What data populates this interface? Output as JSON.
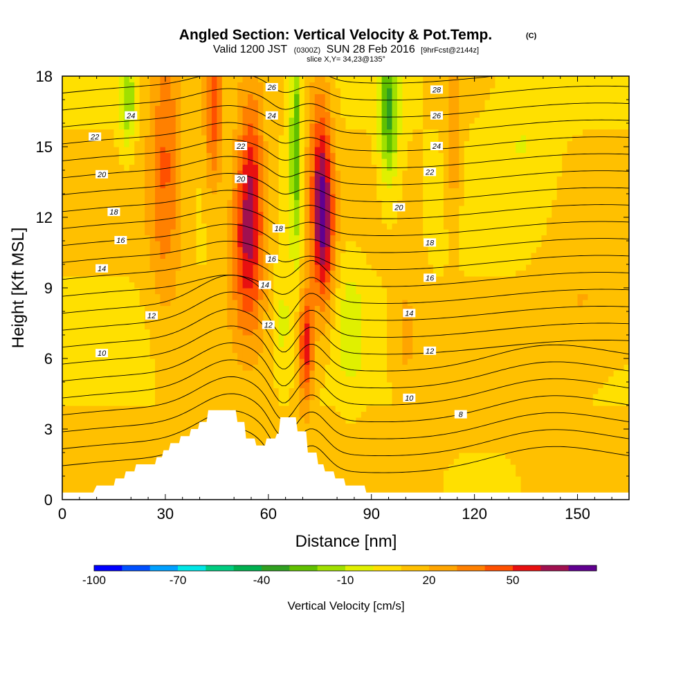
{
  "chart_data": {
    "type": "heatmap",
    "title": "Angled Section: Vertical Velocity & Pot.Temp.",
    "title_units": "(C)",
    "subtitle_parts": {
      "valid": "Valid 1200 JST",
      "z": "(0300Z)",
      "date": "SUN 28 Feb 2016",
      "fcst": "[9hrFcst@2144z]"
    },
    "slice": "slice X,Y= 34,23@135°",
    "xlabel": "Distance [nm]",
    "ylabel": "Height [Kft MSL]",
    "xlim": [
      0,
      165
    ],
    "ylim": [
      0,
      18
    ],
    "x_ticks": [
      "0",
      "30",
      "60",
      "90",
      "120",
      "150"
    ],
    "y_ticks": [
      "0",
      "3",
      "6",
      "9",
      "12",
      "15",
      "18"
    ],
    "colorbar": {
      "title": "Vertical Velocity [cm/s]",
      "levels": [
        -100,
        -90,
        -80,
        -70,
        -60,
        -50,
        -40,
        -30,
        -20,
        -10,
        0,
        10,
        20,
        30,
        40,
        50,
        60,
        70
      ],
      "colors": [
        "#0000ff",
        "#0050ff",
        "#00a0ff",
        "#00e6e6",
        "#00cc80",
        "#00b050",
        "#30a020",
        "#60c000",
        "#a0e000",
        "#e0f000",
        "#ffe000",
        "#ffc000",
        "#ffa500",
        "#ff8000",
        "#ff5000",
        "#e81010",
        "#a01050",
        "#600090"
      ],
      "tick_labels": [
        "-100",
        "-70",
        "-40",
        "-10",
        "20",
        "50"
      ]
    },
    "terrain": [
      [
        0,
        0.3
      ],
      [
        9,
        0.3
      ],
      [
        10,
        0.6
      ],
      [
        15,
        0.6
      ],
      [
        15.5,
        0.9
      ],
      [
        18,
        0.9
      ],
      [
        18.5,
        1.2
      ],
      [
        21,
        1.2
      ],
      [
        21.5,
        1.5
      ],
      [
        27,
        1.5
      ],
      [
        27.5,
        1.8
      ],
      [
        29,
        1.8
      ],
      [
        29.5,
        2.1
      ],
      [
        31,
        2.1
      ],
      [
        31.5,
        2.4
      ],
      [
        34,
        2.4
      ],
      [
        34.5,
        2.7
      ],
      [
        37,
        2.7
      ],
      [
        37.5,
        3.0
      ],
      [
        39.5,
        3.0
      ],
      [
        40,
        3.3
      ],
      [
        42,
        3.3
      ],
      [
        42.5,
        3.8
      ],
      [
        50.5,
        3.8
      ],
      [
        51,
        3.3
      ],
      [
        53,
        3.3
      ],
      [
        53.5,
        2.6
      ],
      [
        56,
        2.6
      ],
      [
        56.5,
        2.3
      ],
      [
        59,
        2.3
      ],
      [
        59.5,
        2.6
      ],
      [
        62,
        2.6
      ],
      [
        62.5,
        2.8
      ],
      [
        63,
        2.8
      ],
      [
        63.5,
        3.5
      ],
      [
        68,
        3.5
      ],
      [
        68.5,
        2.9
      ],
      [
        71,
        2.9
      ],
      [
        71.5,
        2.0
      ],
      [
        74,
        2.0
      ],
      [
        74.5,
        1.5
      ],
      [
        76,
        1.5
      ],
      [
        76.5,
        1.2
      ],
      [
        79,
        1.2
      ],
      [
        79.5,
        0.9
      ],
      [
        82,
        0.9
      ],
      [
        82.5,
        0.6
      ],
      [
        88,
        0.6
      ],
      [
        88.5,
        0.3
      ],
      [
        165,
        0.3
      ]
    ],
    "updrafts": [
      {
        "x": 30,
        "y": 14.5,
        "sx": 3.5,
        "sy": 4.5,
        "w": 30
      },
      {
        "x": 44,
        "y": 16.5,
        "sx": 1.8,
        "sy": 2.5,
        "w": 35
      },
      {
        "x": 54,
        "y": 11,
        "sx": 3.5,
        "sy": 2.8,
        "w": 48
      },
      {
        "x": 55,
        "y": 14.5,
        "sx": 2.5,
        "sy": 2.5,
        "w": 25
      },
      {
        "x": 71,
        "y": 6.5,
        "sx": 1.5,
        "sy": 1.8,
        "w": 45
      },
      {
        "x": 76,
        "y": 11.5,
        "sx": 2.2,
        "sy": 2.5,
        "w": 50
      },
      {
        "x": 75,
        "y": 14.5,
        "sx": 2.5,
        "sy": 3,
        "w": 28
      },
      {
        "x": 114,
        "y": 15.5,
        "sx": 1.5,
        "sy": 2.5,
        "w": 22
      },
      {
        "x": 152,
        "y": 8,
        "sx": 10,
        "sy": 2,
        "w": 12
      },
      {
        "x": 100,
        "y": 7,
        "sx": 3,
        "sy": 2,
        "w": 14
      }
    ],
    "downdrafts": [
      {
        "x": 68,
        "y": 15,
        "sx": 1.2,
        "sy": 3.5,
        "w": 38
      },
      {
        "x": 95,
        "y": 16.5,
        "sx": 2,
        "sy": 2.2,
        "w": 42
      },
      {
        "x": 19,
        "y": 17,
        "sx": 1.5,
        "sy": 1.5,
        "w": 28
      },
      {
        "x": 64,
        "y": 7.5,
        "sx": 2,
        "sy": 1.5,
        "w": 15
      },
      {
        "x": 84,
        "y": 7.5,
        "sx": 3,
        "sy": 2,
        "w": 14
      },
      {
        "x": 134,
        "y": 16,
        "sx": 6,
        "sy": 3,
        "w": 10
      }
    ],
    "theta_levels": [
      4,
      6,
      8,
      10,
      12,
      14,
      16,
      18,
      20,
      22,
      24,
      26,
      28,
      30
    ],
    "contour_labels": [
      {
        "text": "26",
        "x": 61,
        "y": 17.5
      },
      {
        "text": "28",
        "x": 109,
        "y": 17.4
      },
      {
        "text": "24",
        "x": 20,
        "y": 16.3
      },
      {
        "text": "24",
        "x": 61,
        "y": 16.3
      },
      {
        "text": "26",
        "x": 109,
        "y": 16.3
      },
      {
        "text": "22",
        "x": 9.5,
        "y": 15.4
      },
      {
        "text": "22",
        "x": 52,
        "y": 15
      },
      {
        "text": "24",
        "x": 109,
        "y": 15
      },
      {
        "text": "20",
        "x": 11.5,
        "y": 13.8
      },
      {
        "text": "20",
        "x": 52,
        "y": 13.6
      },
      {
        "text": "22",
        "x": 107,
        "y": 13.9
      },
      {
        "text": "18",
        "x": 15,
        "y": 12.2
      },
      {
        "text": "20",
        "x": 98,
        "y": 12.4
      },
      {
        "text": "18",
        "x": 63,
        "y": 11.5
      },
      {
        "text": "16",
        "x": 17,
        "y": 11
      },
      {
        "text": "18",
        "x": 107,
        "y": 10.9
      },
      {
        "text": "16",
        "x": 61,
        "y": 10.2
      },
      {
        "text": "14",
        "x": 11.5,
        "y": 9.8
      },
      {
        "text": "14",
        "x": 59,
        "y": 9.1
      },
      {
        "text": "16",
        "x": 107,
        "y": 9.4
      },
      {
        "text": "12",
        "x": 26,
        "y": 7.8
      },
      {
        "text": "14",
        "x": 101,
        "y": 7.9
      },
      {
        "text": "12",
        "x": 60,
        "y": 7.4
      },
      {
        "text": "12",
        "x": 107,
        "y": 6.3
      },
      {
        "text": "10",
        "x": 11.5,
        "y": 6.2
      },
      {
        "text": "10",
        "x": 101,
        "y": 4.3
      },
      {
        "text": "8",
        "x": 116,
        "y": 3.6
      }
    ],
    "grid": false
  }
}
